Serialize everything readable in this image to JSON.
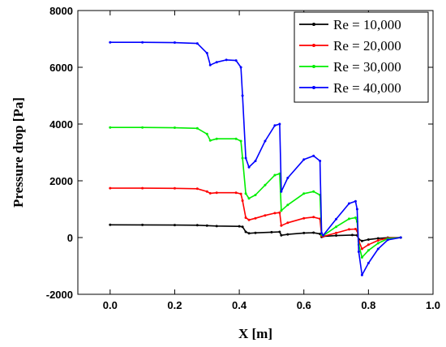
{
  "chart_data": {
    "type": "line",
    "xlabel": "X [m]",
    "ylabel": "Pressure drop [Pa]",
    "xlim": [
      -0.1,
      1.0
    ],
    "ylim": [
      -2000,
      8000
    ],
    "x_ticks": [
      "0.0",
      "0.2",
      "0.4",
      "0.6",
      "0.8",
      "1.0"
    ],
    "y_ticks": [
      "-2000",
      "0",
      "2000",
      "4000",
      "6000",
      "8000"
    ],
    "legend_position": "top-right",
    "grid": false,
    "series": [
      {
        "name": "Re = 10,000",
        "color": "#000000",
        "points": [
          [
            0.0,
            450
          ],
          [
            0.1,
            445
          ],
          [
            0.2,
            440
          ],
          [
            0.27,
            435
          ],
          [
            0.3,
            420
          ],
          [
            0.33,
            405
          ],
          [
            0.4,
            395
          ],
          [
            0.41,
            380
          ],
          [
            0.42,
            200
          ],
          [
            0.43,
            150
          ],
          [
            0.45,
            165
          ],
          [
            0.5,
            190
          ],
          [
            0.525,
            200
          ],
          [
            0.53,
            80
          ],
          [
            0.55,
            110
          ],
          [
            0.6,
            160
          ],
          [
            0.63,
            170
          ],
          [
            0.65,
            130
          ],
          [
            0.655,
            20
          ],
          [
            0.66,
            40
          ],
          [
            0.7,
            70
          ],
          [
            0.75,
            90
          ],
          [
            0.765,
            80
          ],
          [
            0.77,
            -60
          ],
          [
            0.78,
            -120
          ],
          [
            0.8,
            -70
          ],
          [
            0.83,
            -30
          ],
          [
            0.86,
            -5
          ],
          [
            0.9,
            0
          ]
        ]
      },
      {
        "name": "Re = 20,000",
        "color": "#ff0000",
        "points": [
          [
            0.0,
            1740
          ],
          [
            0.1,
            1740
          ],
          [
            0.2,
            1735
          ],
          [
            0.27,
            1720
          ],
          [
            0.3,
            1620
          ],
          [
            0.31,
            1560
          ],
          [
            0.33,
            1580
          ],
          [
            0.39,
            1580
          ],
          [
            0.405,
            1540
          ],
          [
            0.41,
            1300
          ],
          [
            0.42,
            700
          ],
          [
            0.43,
            620
          ],
          [
            0.45,
            680
          ],
          [
            0.48,
            780
          ],
          [
            0.51,
            860
          ],
          [
            0.525,
            880
          ],
          [
            0.53,
            420
          ],
          [
            0.55,
            520
          ],
          [
            0.6,
            680
          ],
          [
            0.63,
            720
          ],
          [
            0.65,
            660
          ],
          [
            0.655,
            60
          ],
          [
            0.66,
            40
          ],
          [
            0.7,
            160
          ],
          [
            0.74,
            290
          ],
          [
            0.76,
            300
          ],
          [
            0.765,
            240
          ],
          [
            0.77,
            -120
          ],
          [
            0.78,
            -400
          ],
          [
            0.8,
            -250
          ],
          [
            0.83,
            -100
          ],
          [
            0.86,
            -20
          ],
          [
            0.9,
            0
          ]
        ]
      },
      {
        "name": "Re = 30,000",
        "color": "#00ee00",
        "points": [
          [
            0.0,
            3880
          ],
          [
            0.1,
            3880
          ],
          [
            0.2,
            3870
          ],
          [
            0.27,
            3850
          ],
          [
            0.3,
            3650
          ],
          [
            0.31,
            3420
          ],
          [
            0.33,
            3480
          ],
          [
            0.39,
            3480
          ],
          [
            0.405,
            3400
          ],
          [
            0.41,
            2800
          ],
          [
            0.42,
            1550
          ],
          [
            0.43,
            1380
          ],
          [
            0.45,
            1500
          ],
          [
            0.48,
            1850
          ],
          [
            0.51,
            2200
          ],
          [
            0.525,
            2250
          ],
          [
            0.53,
            950
          ],
          [
            0.55,
            1150
          ],
          [
            0.6,
            1550
          ],
          [
            0.63,
            1620
          ],
          [
            0.65,
            1500
          ],
          [
            0.655,
            100
          ],
          [
            0.66,
            70
          ],
          [
            0.7,
            380
          ],
          [
            0.74,
            660
          ],
          [
            0.76,
            700
          ],
          [
            0.765,
            560
          ],
          [
            0.77,
            -250
          ],
          [
            0.78,
            -700
          ],
          [
            0.8,
            -450
          ],
          [
            0.83,
            -200
          ],
          [
            0.86,
            -40
          ],
          [
            0.9,
            0
          ]
        ]
      },
      {
        "name": "Re = 40,000",
        "color": "#0000ff",
        "points": [
          [
            0.0,
            6880
          ],
          [
            0.1,
            6880
          ],
          [
            0.2,
            6870
          ],
          [
            0.27,
            6840
          ],
          [
            0.3,
            6500
          ],
          [
            0.31,
            6080
          ],
          [
            0.33,
            6180
          ],
          [
            0.36,
            6260
          ],
          [
            0.39,
            6240
          ],
          [
            0.405,
            6000
          ],
          [
            0.41,
            5000
          ],
          [
            0.42,
            2800
          ],
          [
            0.43,
            2480
          ],
          [
            0.45,
            2700
          ],
          [
            0.48,
            3400
          ],
          [
            0.51,
            3950
          ],
          [
            0.525,
            4000
          ],
          [
            0.53,
            1620
          ],
          [
            0.55,
            2100
          ],
          [
            0.6,
            2750
          ],
          [
            0.63,
            2880
          ],
          [
            0.65,
            2700
          ],
          [
            0.655,
            150
          ],
          [
            0.66,
            80
          ],
          [
            0.7,
            650
          ],
          [
            0.74,
            1200
          ],
          [
            0.76,
            1280
          ],
          [
            0.765,
            1000
          ],
          [
            0.77,
            -500
          ],
          [
            0.78,
            -1320
          ],
          [
            0.8,
            -900
          ],
          [
            0.83,
            -400
          ],
          [
            0.86,
            -80
          ],
          [
            0.9,
            0
          ]
        ]
      }
    ]
  }
}
